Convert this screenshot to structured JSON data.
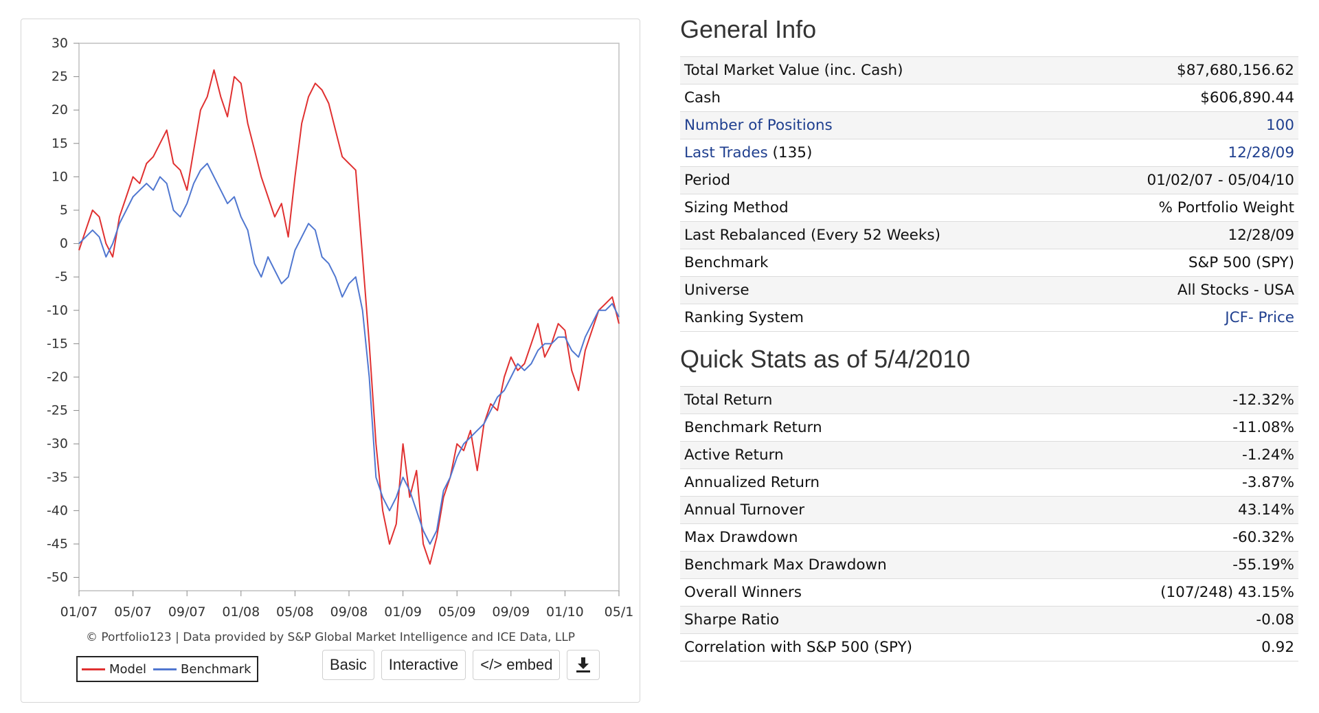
{
  "chart": {
    "credit": "© Portfolio123 | Data provided by S&P Global Market Intelligence and ICE Data, LLP",
    "buttons": {
      "basic": "Basic",
      "interactive": "Interactive",
      "embed": "</> embed"
    }
  },
  "chart_data": {
    "type": "line",
    "title": "",
    "xlabel": "",
    "ylabel": "",
    "ylim": [
      -52,
      30
    ],
    "y_ticks": [
      "30",
      "25",
      "20",
      "15",
      "10",
      "5",
      "0",
      "-5",
      "-10",
      "-15",
      "-20",
      "-25",
      "-30",
      "-35",
      "-40",
      "-45",
      "-50"
    ],
    "x_ticks": [
      "01/07",
      "05/07",
      "09/07",
      "01/08",
      "05/08",
      "09/08",
      "01/09",
      "05/09",
      "09/09",
      "01/10",
      "05/1"
    ],
    "grid": false,
    "legend": "bottom-left",
    "series": [
      {
        "name": "Model",
        "color": "#e03030",
        "x": [
          0,
          0.5,
          1,
          1.5,
          2,
          2.5,
          3,
          3.5,
          4,
          4.5,
          5,
          5.5,
          6,
          6.5,
          7,
          7.5,
          8,
          8.5,
          9,
          9.5,
          10,
          10.5,
          11,
          11.5,
          12,
          12.5,
          13,
          13.5,
          14,
          14.5,
          15,
          15.5,
          16,
          16.5,
          17,
          17.5,
          18,
          18.5,
          19,
          19.5,
          20,
          20.5,
          21,
          21.5,
          22,
          22.5,
          23,
          23.5,
          24,
          24.5,
          25,
          25.5,
          26,
          26.5,
          27,
          27.5,
          28,
          28.5,
          29,
          29.5,
          30,
          30.5,
          31,
          31.5,
          32,
          32.5,
          33,
          33.5,
          34,
          34.5,
          35,
          35.5,
          36,
          36.5,
          37,
          37.5,
          38,
          38.5,
          39,
          39.5,
          40
        ],
        "values": [
          -1,
          2,
          5,
          4,
          0,
          -2,
          4,
          7,
          10,
          9,
          12,
          13,
          15,
          17,
          12,
          11,
          8,
          14,
          20,
          22,
          26,
          22,
          19,
          25,
          24,
          18,
          14,
          10,
          7,
          4,
          6,
          1,
          10,
          18,
          22,
          24,
          23,
          21,
          17,
          13,
          12,
          11,
          -2,
          -15,
          -30,
          -40,
          -45,
          -42,
          -30,
          -38,
          -34,
          -45,
          -48,
          -44,
          -38,
          -35,
          -30,
          -31,
          -28,
          -34,
          -27,
          -24,
          -25,
          -20,
          -17,
          -19,
          -18,
          -15,
          -12,
          -17,
          -15,
          -12,
          -13,
          -19,
          -22,
          -16,
          -13,
          -10,
          -9,
          -8,
          -12
        ]
      },
      {
        "name": "Benchmark",
        "color": "#5077d0",
        "x": [
          0,
          0.5,
          1,
          1.5,
          2,
          2.5,
          3,
          3.5,
          4,
          4.5,
          5,
          5.5,
          6,
          6.5,
          7,
          7.5,
          8,
          8.5,
          9,
          9.5,
          10,
          10.5,
          11,
          11.5,
          12,
          12.5,
          13,
          13.5,
          14,
          14.5,
          15,
          15.5,
          16,
          16.5,
          17,
          17.5,
          18,
          18.5,
          19,
          19.5,
          20,
          20.5,
          21,
          21.5,
          22,
          22.5,
          23,
          23.5,
          24,
          24.5,
          25,
          25.5,
          26,
          26.5,
          27,
          27.5,
          28,
          28.5,
          29,
          29.5,
          30,
          30.5,
          31,
          31.5,
          32,
          32.5,
          33,
          33.5,
          34,
          34.5,
          35,
          35.5,
          36,
          36.5,
          37,
          37.5,
          38,
          38.5,
          39,
          39.5,
          40
        ],
        "values": [
          0,
          1,
          2,
          1,
          -2,
          0,
          3,
          5,
          7,
          8,
          9,
          8,
          10,
          9,
          5,
          4,
          6,
          9,
          11,
          12,
          10,
          8,
          6,
          7,
          4,
          2,
          -3,
          -5,
          -2,
          -4,
          -6,
          -5,
          -1,
          1,
          3,
          2,
          -2,
          -3,
          -5,
          -8,
          -6,
          -5,
          -10,
          -20,
          -35,
          -38,
          -40,
          -38,
          -35,
          -37,
          -40,
          -43,
          -45,
          -43,
          -37,
          -35,
          -32,
          -30,
          -29,
          -28,
          -27,
          -25,
          -23,
          -22,
          -20,
          -18,
          -19,
          -18,
          -16,
          -15,
          -15,
          -14,
          -14,
          -16,
          -17,
          -14,
          -12,
          -10,
          -10,
          -9,
          -11
        ]
      }
    ]
  },
  "general_info": {
    "title": "General Info",
    "rows": [
      {
        "label": "Total Market Value (inc. Cash)",
        "value": "$87,680,156.62"
      },
      {
        "label": "Cash",
        "value": "$606,890.44"
      },
      {
        "label": "Number of Positions",
        "value": "100"
      },
      {
        "label": "Last Trades",
        "label_suffix": " (135)",
        "value": "12/28/09"
      },
      {
        "label": "Period",
        "value": "01/02/07 - 05/04/10"
      },
      {
        "label": "Sizing Method",
        "value": "% Portfolio Weight"
      },
      {
        "label": "Last Rebalanced (Every 52 Weeks)",
        "value": "12/28/09"
      },
      {
        "label": "Benchmark",
        "value": "S&P 500 (SPY)"
      },
      {
        "label": "Universe",
        "value": "All Stocks - USA"
      },
      {
        "label": "Ranking System",
        "value": "JCF- Price"
      }
    ]
  },
  "quick_stats": {
    "title": "Quick Stats as of 5/4/2010",
    "rows": [
      {
        "label": "Total Return",
        "value": "-12.32%"
      },
      {
        "label": "Benchmark Return",
        "value": "-11.08%"
      },
      {
        "label": "Active Return",
        "value": "-1.24%"
      },
      {
        "label": "Annualized Return",
        "value": "-3.87%"
      },
      {
        "label": "Annual Turnover",
        "value": "43.14%"
      },
      {
        "label": "Max Drawdown",
        "value": "-60.32%"
      },
      {
        "label": "Benchmark Max Drawdown",
        "value": "-55.19%"
      },
      {
        "label": "Overall Winners",
        "value": "(107/248) 43.15%"
      },
      {
        "label": "Sharpe Ratio",
        "value": "-0.08"
      },
      {
        "label": "Correlation with S&P 500 (SPY)",
        "value": "0.92"
      }
    ]
  }
}
